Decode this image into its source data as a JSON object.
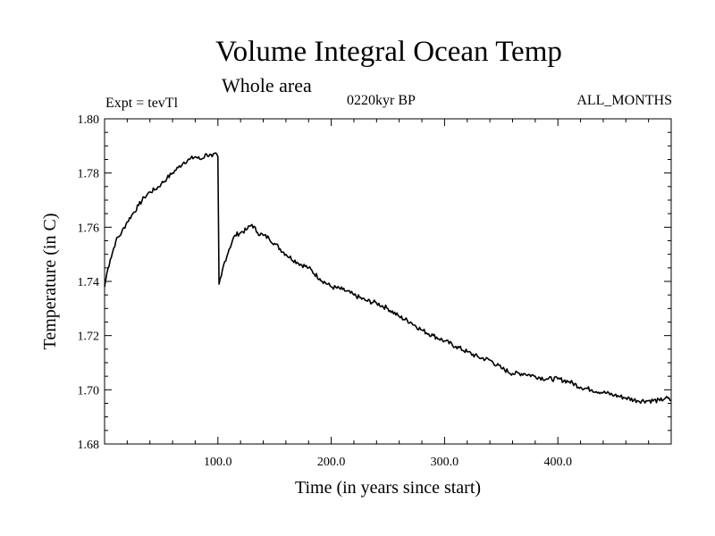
{
  "header": {
    "title": "Volume Integral Ocean Temp",
    "subtitle": "Whole area",
    "experiment": "Expt = tevTl",
    "period": "0220kyr BP",
    "months": "ALL_MONTHS"
  },
  "chart_data": {
    "type": "line",
    "title": "Volume Integral Ocean Temp",
    "subtitle": "Whole area",
    "xlabel": "Time (in years since start)",
    "ylabel": "Temperature (in C)",
    "xlim": [
      0,
      500
    ],
    "ylim": [
      1.68,
      1.8
    ],
    "xticks": [
      100,
      200,
      300,
      400
    ],
    "xtick_labels": [
      "100.0",
      "200.0",
      "300.0",
      "400.0"
    ],
    "yticks": [
      1.68,
      1.7,
      1.72,
      1.74,
      1.76,
      1.78,
      1.8
    ],
    "ytick_labels": [
      "1.68",
      "1.70",
      "1.72",
      "1.74",
      "1.76",
      "1.78",
      "1.80"
    ],
    "grid": false,
    "line_color": "#000000",
    "series": [
      {
        "x": [
          0,
          2,
          5,
          10,
          15,
          20,
          25,
          30,
          35,
          40,
          45,
          50,
          55,
          60,
          65,
          70,
          75,
          80,
          85,
          90,
          95,
          99,
          100,
          101,
          103,
          105,
          110,
          115,
          120,
          125,
          130,
          135,
          140,
          145,
          150,
          160,
          170,
          180,
          190,
          200,
          210,
          220,
          230,
          240,
          250,
          260,
          270,
          280,
          290,
          300,
          310,
          320,
          330,
          340,
          350,
          360,
          370,
          380,
          390,
          400,
          410,
          420,
          430,
          440,
          450,
          460,
          470,
          480,
          490,
          495,
          500
        ],
        "y": [
          1.738,
          1.743,
          1.748,
          1.755,
          1.758,
          1.762,
          1.765,
          1.768,
          1.771,
          1.773,
          1.774,
          1.776,
          1.778,
          1.78,
          1.782,
          1.784,
          1.785,
          1.786,
          1.785,
          1.787,
          1.786,
          1.787,
          1.786,
          1.739,
          1.742,
          1.746,
          1.752,
          1.757,
          1.758,
          1.759,
          1.761,
          1.758,
          1.757,
          1.756,
          1.754,
          1.75,
          1.747,
          1.745,
          1.741,
          1.738,
          1.737,
          1.735,
          1.733,
          1.732,
          1.73,
          1.727,
          1.725,
          1.722,
          1.72,
          1.718,
          1.716,
          1.714,
          1.712,
          1.711,
          1.708,
          1.706,
          1.706,
          1.705,
          1.704,
          1.704,
          1.703,
          1.701,
          1.7,
          1.699,
          1.698,
          1.697,
          1.696,
          1.696,
          1.696,
          1.697,
          1.696
        ]
      }
    ]
  }
}
